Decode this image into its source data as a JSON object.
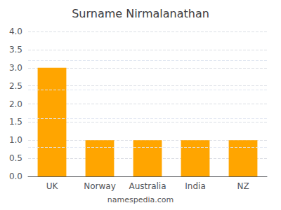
{
  "chart_data": {
    "type": "bar",
    "title": "Surname Nirmalanathan",
    "categories": [
      "UK",
      "Norway",
      "Australia",
      "India",
      "NZ"
    ],
    "values": [
      3,
      1,
      1,
      1,
      1
    ],
    "color": "#FFA500",
    "ylim": [
      0,
      4
    ],
    "yticks": [
      {
        "value": 0,
        "label": "0.0"
      },
      0.5,
      {
        "value": 1,
        "label": "1.0"
      },
      1.5,
      {
        "value": 2,
        "label": "2.0"
      },
      2.5,
      {
        "value": 3,
        "label": "3.0"
      },
      3.5,
      {
        "value": 4,
        "label": "4.0"
      }
    ],
    "extra_gridlines": [
      0.8,
      1.6,
      2.4,
      3.2
    ],
    "grid": true,
    "footer": "namespedia.com"
  }
}
